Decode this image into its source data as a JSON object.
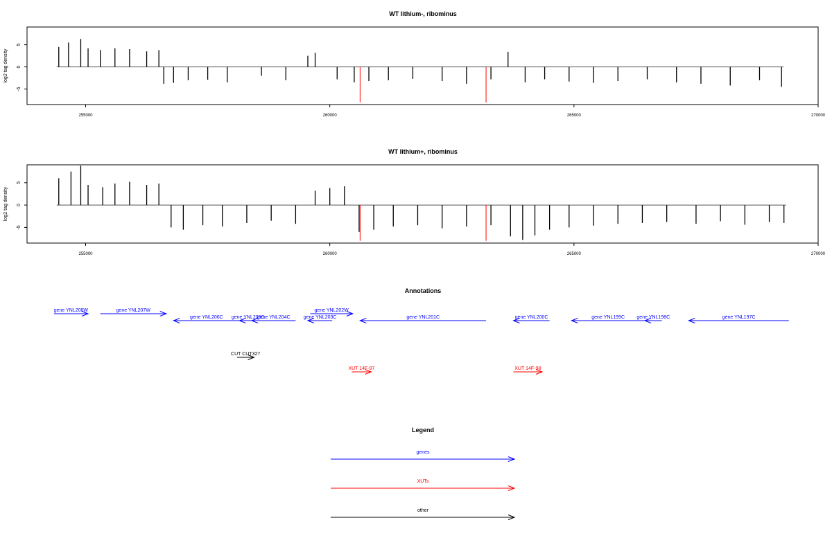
{
  "chart_data": [
    {
      "type": "bar",
      "title": "WT lithium-, ribominus",
      "ylabel": "log2 tag density",
      "xlabel": "",
      "xlim": [
        253800,
        270000
      ],
      "ylim": [
        -8.5,
        9
      ],
      "x_ticks": [
        255000,
        260000,
        265000,
        270000
      ],
      "y_ticks": [
        5,
        0,
        -5
      ],
      "bars": {
        "x": [
          254450,
          254650,
          254900,
          255050,
          255300,
          255600,
          255900,
          256250,
          256500,
          256600,
          256800,
          257100,
          257500,
          257900,
          258600,
          259100,
          259550,
          259700,
          260150,
          260500,
          260800,
          261200,
          261700,
          262300,
          262800,
          263300,
          263650,
          264000,
          264400,
          264900,
          265400,
          265900,
          266500,
          267100,
          267600,
          268200,
          268800,
          269250
        ],
        "y": [
          4.5,
          5.5,
          6.3,
          4.2,
          3.8,
          4.2,
          4.0,
          3.5,
          3.8,
          -3.8,
          -3.6,
          -3.0,
          -2.9,
          -3.5,
          -2.0,
          -3.0,
          2.5,
          3.2,
          -2.8,
          -3.5,
          -3.2,
          -3.0,
          -2.7,
          -3.2,
          -3.8,
          -2.8,
          3.4,
          -3.5,
          -2.8,
          -3.3,
          -3.6,
          -3.2,
          -2.8,
          -3.5,
          -3.8,
          -4.2,
          -3.0,
          -4.5
        ]
      },
      "markers": [
        {
          "x": 260620,
          "y": -8
        },
        {
          "x": 263200,
          "y": -8
        }
      ]
    },
    {
      "type": "bar",
      "title": "WT lithium+, ribominus",
      "ylabel": "log2 tag density",
      "xlabel": "",
      "xlim": [
        253800,
        270000
      ],
      "ylim": [
        -8.5,
        9
      ],
      "x_ticks": [
        255000,
        260000,
        265000,
        270000
      ],
      "y_ticks": [
        5,
        0,
        -5
      ],
      "bars": {
        "x": [
          254450,
          254700,
          254900,
          255050,
          255350,
          255600,
          255900,
          256250,
          256500,
          256750,
          257000,
          257400,
          257800,
          258300,
          258800,
          259300,
          259700,
          260000,
          260300,
          260600,
          260900,
          261300,
          261800,
          262300,
          262800,
          263300,
          263700,
          263950,
          264200,
          264500,
          264900,
          265400,
          265900,
          266400,
          266900,
          267500,
          268000,
          268500,
          269000,
          269300
        ],
        "y": [
          6.0,
          7.5,
          8.8,
          4.5,
          4.0,
          4.8,
          5.2,
          4.5,
          4.8,
          -5.0,
          -5.5,
          -4.5,
          -4.8,
          -4.0,
          -3.5,
          -4.2,
          3.2,
          3.8,
          4.2,
          -6.0,
          -5.5,
          -4.8,
          -4.5,
          -5.2,
          -4.8,
          -4.5,
          -7.0,
          -7.8,
          -6.8,
          -5.5,
          -5.0,
          -4.6,
          -4.2,
          -4.0,
          -3.8,
          -4.2,
          -3.6,
          -4.4,
          -3.8,
          -4.0
        ]
      },
      "markers": [
        {
          "x": 260620,
          "y": -8
        },
        {
          "x": 263200,
          "y": -8
        }
      ]
    }
  ],
  "annotations": {
    "title": "Annotations",
    "xlim": [
      253800,
      270000
    ],
    "features": [
      {
        "label": "gene YNL208W",
        "start": 254350,
        "end": 255050,
        "strand": "+",
        "row": 0,
        "color": "#0000ff"
      },
      {
        "label": "gene YNL207W",
        "start": 255300,
        "end": 256650,
        "strand": "+",
        "row": 0,
        "color": "#0000ff"
      },
      {
        "label": "gene YNL206C",
        "start": 256800,
        "end": 258150,
        "strand": "-",
        "row": 1,
        "color": "#0000ff"
      },
      {
        "label": "gene YNL205C",
        "start": 258150,
        "end": 258500,
        "strand": "-",
        "row": 1,
        "color": "#0000ff"
      },
      {
        "label": "gene YNL204C",
        "start": 258400,
        "end": 259300,
        "strand": "-",
        "row": 1,
        "color": "#0000ff"
      },
      {
        "label": "gene YNL203C",
        "start": 259550,
        "end": 260050,
        "strand": "-",
        "row": 1,
        "color": "#0000ff"
      },
      {
        "label": "gene YNL202W",
        "start": 259600,
        "end": 260470,
        "strand": "+",
        "row": 0,
        "color": "#0000ff"
      },
      {
        "label": "gene YNL201C",
        "start": 260620,
        "end": 263200,
        "strand": "-",
        "row": 1,
        "color": "#0000ff"
      },
      {
        "label": "gene YNL200C",
        "start": 263760,
        "end": 264500,
        "strand": "-",
        "row": 1,
        "color": "#0000ff"
      },
      {
        "label": "gene YNL199C",
        "start": 264950,
        "end": 266450,
        "strand": "-",
        "row": 1,
        "color": "#0000ff"
      },
      {
        "label": "gene YNL198C",
        "start": 266450,
        "end": 266800,
        "strand": "-",
        "row": 1,
        "color": "#0000ff"
      },
      {
        "label": "gene YNL197C",
        "start": 267350,
        "end": 269400,
        "strand": "-",
        "row": 1,
        "color": "#0000ff"
      },
      {
        "label": "CUT CUT327",
        "start": 258100,
        "end": 258450,
        "strand": "+",
        "row": 3,
        "color": "#000000"
      },
      {
        "label": "XUT 14F-97",
        "start": 260450,
        "end": 260850,
        "strand": "+",
        "row": 4,
        "color": "#ff0000"
      },
      {
        "label": "XUT 14F-98",
        "start": 263760,
        "end": 264350,
        "strand": "+",
        "row": 4,
        "color": "#ff0000"
      }
    ]
  },
  "legend": {
    "title": "Legend",
    "items": [
      {
        "label": "genes",
        "color": "#0000ff"
      },
      {
        "label": "XUTs",
        "color": "#ff0000"
      },
      {
        "label": "other",
        "color": "#000000"
      }
    ]
  }
}
